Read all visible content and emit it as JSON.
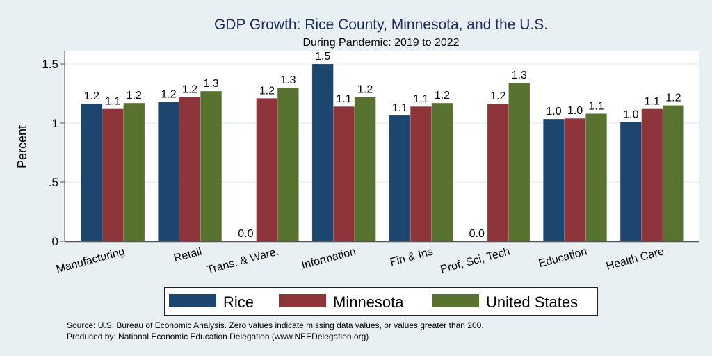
{
  "chart_data": {
    "type": "bar",
    "title": "GDP Growth: Rice County, Minnesota, and the U.S.",
    "subtitle": "During Pandemic: 2019 to 2022",
    "xlabel": "",
    "ylabel": "Percent",
    "ylim": [
      0,
      1.6
    ],
    "yticks": [
      {
        "value": 0,
        "label": "0"
      },
      {
        "value": 0.5,
        "label": ".5"
      },
      {
        "value": 1,
        "label": "1"
      },
      {
        "value": 1.5,
        "label": "1.5"
      }
    ],
    "grid": true,
    "categories": [
      "Manufacturing",
      "Retail",
      "Trans. & Ware.",
      "Information",
      "Fin & Ins",
      "Prof, Sci, Tech",
      "Education",
      "Health Care"
    ],
    "series": [
      {
        "name": "Rice",
        "color": "#1c466e",
        "values": [
          1.165,
          1.18,
          0,
          1.5,
          1.065,
          0,
          1.035,
          1.01
        ],
        "labels": [
          "1.2",
          "1.2",
          "0.0",
          "1.5",
          "1.1",
          "0.0",
          "1.0",
          "1.0"
        ]
      },
      {
        "name": "Minnesota",
        "color": "#8e353c",
        "values": [
          1.12,
          1.22,
          1.21,
          1.14,
          1.14,
          1.165,
          1.04,
          1.12
        ],
        "labels": [
          "1.1",
          "1.2",
          "1.2",
          "1.1",
          "1.1",
          "1.2",
          "1.0",
          "1.1"
        ]
      },
      {
        "name": "United States",
        "color": "#58732f",
        "values": [
          1.17,
          1.27,
          1.3,
          1.22,
          1.17,
          1.34,
          1.08,
          1.15
        ],
        "labels": [
          "1.2",
          "1.3",
          "1.3",
          "1.2",
          "1.2",
          "1.3",
          "1.1",
          "1.2"
        ]
      }
    ],
    "legend_position": "bottom",
    "annotations": [
      "Source: U.S. Bureau of Economic Analysis. Zero values indicate missing data values, or values greater than 200.",
      "Produced by: National Economic Education Delegation (www.NEEDelegation.org)"
    ]
  }
}
